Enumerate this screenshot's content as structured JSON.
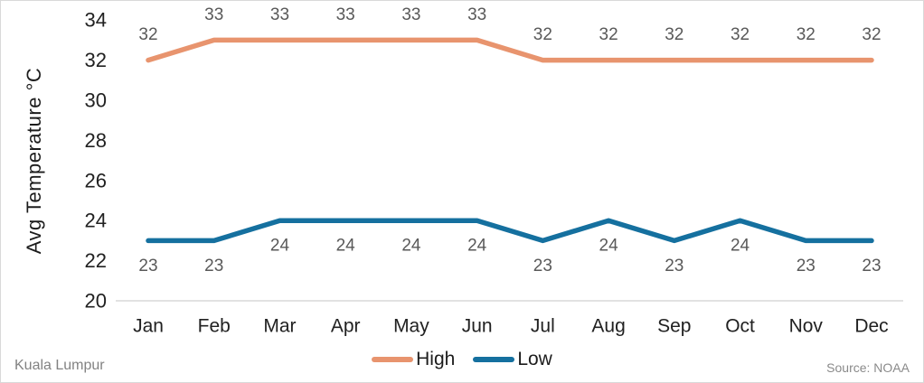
{
  "chart_data": {
    "type": "line",
    "title": "",
    "xlabel": "",
    "ylabel": "Avg Temperature °C",
    "categories": [
      "Jan",
      "Feb",
      "Mar",
      "Apr",
      "May",
      "Jun",
      "Jul",
      "Aug",
      "Sep",
      "Oct",
      "Nov",
      "Dec"
    ],
    "series": [
      {
        "name": "High",
        "color": "#E8946E",
        "label_position": "above",
        "values": [
          32,
          33,
          33,
          33,
          33,
          33,
          32,
          32,
          32,
          32,
          32,
          32
        ]
      },
      {
        "name": "Low",
        "color": "#15709F",
        "label_position": "below",
        "values": [
          23,
          23,
          24,
          24,
          24,
          24,
          23,
          24,
          23,
          24,
          23,
          23
        ]
      }
    ],
    "y_ticks": [
      34,
      32,
      30,
      28,
      26,
      24,
      22,
      20
    ],
    "ylim": [
      20,
      34
    ],
    "grid": false,
    "legend_position": "bottom"
  },
  "footer": {
    "left_label": "Kuala Lumpur",
    "right_label": "Source: NOAA"
  },
  "colors": {
    "background": "#ffffff",
    "border": "#d9d9d9",
    "axis_line": "#d9d9d9",
    "tick_text": "#212121",
    "data_label_text": "#595959",
    "footer_text": "#828282"
  }
}
